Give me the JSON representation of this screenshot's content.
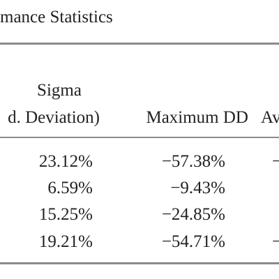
{
  "title": "mance Statistics",
  "table": {
    "header": [
      [
        "Sigma"
      ],
      [
        "d. Deviation)",
        "Maximum DD",
        "Av"
      ]
    ],
    "rows": [
      [
        "23.12%",
        "−57.38%",
        "−"
      ],
      [
        "6.59%",
        "−9.43%"
      ],
      [
        "15.25%",
        "−24.85%"
      ],
      [
        "19.21%",
        "−54.71%",
        "−"
      ]
    ]
  }
}
